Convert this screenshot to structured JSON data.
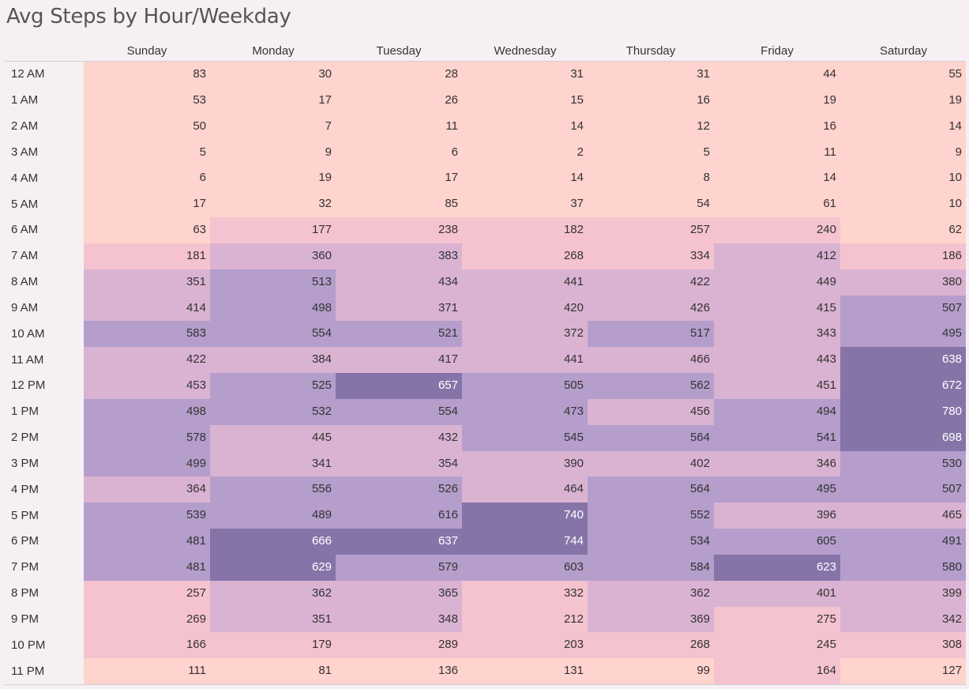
{
  "title": "Avg Steps by Hour/Weekday",
  "chart_data": {
    "type": "heatmap",
    "title": "Avg Steps by Hour/Weekday",
    "columns": [
      "Sunday",
      "Monday",
      "Tuesday",
      "Wednesday",
      "Thursday",
      "Friday",
      "Saturday"
    ],
    "rows": [
      "12 AM",
      "1 AM",
      "2 AM",
      "3 AM",
      "4 AM",
      "5 AM",
      "6 AM",
      "7 AM",
      "8 AM",
      "9 AM",
      "10 AM",
      "11 AM",
      "12 PM",
      "1 PM",
      "2 PM",
      "3 PM",
      "4 PM",
      "5 PM",
      "6 PM",
      "7 PM",
      "8 PM",
      "9 PM",
      "10 PM",
      "11 PM"
    ],
    "values": [
      [
        83,
        30,
        28,
        31,
        31,
        44,
        55
      ],
      [
        53,
        17,
        26,
        15,
        16,
        19,
        19
      ],
      [
        50,
        7,
        11,
        14,
        12,
        16,
        14
      ],
      [
        5,
        9,
        6,
        2,
        5,
        11,
        9
      ],
      [
        6,
        19,
        17,
        14,
        8,
        14,
        10
      ],
      [
        17,
        32,
        85,
        37,
        54,
        61,
        10
      ],
      [
        63,
        177,
        238,
        182,
        257,
        240,
        62
      ],
      [
        181,
        360,
        383,
        268,
        334,
        412,
        186
      ],
      [
        351,
        513,
        434,
        441,
        422,
        449,
        380
      ],
      [
        414,
        498,
        371,
        420,
        426,
        415,
        507
      ],
      [
        583,
        554,
        521,
        372,
        517,
        343,
        495
      ],
      [
        422,
        384,
        417,
        441,
        466,
        443,
        638
      ],
      [
        453,
        525,
        657,
        505,
        562,
        451,
        672
      ],
      [
        498,
        532,
        554,
        473,
        456,
        494,
        780
      ],
      [
        578,
        445,
        432,
        545,
        564,
        541,
        698
      ],
      [
        499,
        341,
        354,
        390,
        402,
        346,
        530
      ],
      [
        364,
        556,
        526,
        464,
        564,
        495,
        507
      ],
      [
        539,
        489,
        616,
        740,
        552,
        396,
        465
      ],
      [
        481,
        666,
        637,
        744,
        534,
        605,
        491
      ],
      [
        481,
        629,
        579,
        603,
        584,
        623,
        580
      ],
      [
        257,
        362,
        365,
        332,
        362,
        401,
        399
      ],
      [
        269,
        351,
        348,
        212,
        369,
        275,
        342
      ],
      [
        166,
        179,
        289,
        203,
        268,
        245,
        308
      ],
      [
        111,
        81,
        136,
        131,
        99,
        164,
        127
      ]
    ],
    "color_bins": [
      {
        "min": 0,
        "max": 150,
        "color": "#ffd3ce"
      },
      {
        "min": 150,
        "max": 340,
        "color": "#f5c3cf"
      },
      {
        "min": 340,
        "max": 470,
        "color": "#dab3d2"
      },
      {
        "min": 470,
        "max": 620,
        "color": "#b59ecb"
      },
      {
        "min": 620,
        "max": 800,
        "color": "#8674a8"
      }
    ],
    "text_color_dark": "#333333",
    "text_color_light": "#ffffff"
  }
}
